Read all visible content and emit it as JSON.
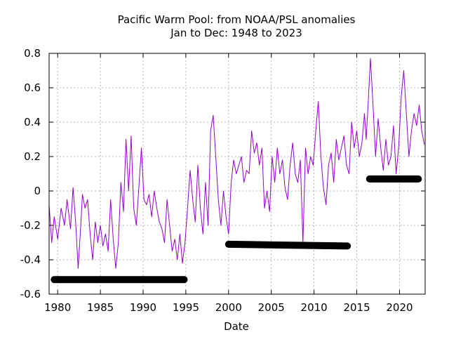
{
  "chart_data": {
    "type": "line",
    "title_lines": [
      "Pacific Warm Pool: from NOAA/PSL  anomalies",
      "Jan to Dec: 1948 to 2023"
    ],
    "xlabel": "Date",
    "ylabel": "",
    "xlim": [
      1979,
      2023
    ],
    "ylim": [
      -0.6,
      0.8
    ],
    "x_ticks": [
      1980,
      1985,
      1990,
      1995,
      2000,
      2005,
      2010,
      2015,
      2020
    ],
    "y_ticks": [
      -0.6,
      -0.4,
      -0.2,
      0,
      0.2,
      0.4,
      0.6,
      0.8
    ],
    "y_tick_labels": [
      "-0.6",
      "-0.4",
      "-0.2",
      "0",
      "0.2",
      "0.4",
      "0.6",
      "0.8"
    ],
    "grid": true,
    "colors": {
      "anomaly_line": "#9400d3",
      "segment_means": "#000000"
    },
    "series": [
      {
        "color": "#9400d3",
        "x": [
          1979.0,
          1979.3,
          1979.6,
          1980.0,
          1980.4,
          1980.8,
          1981.1,
          1981.5,
          1981.8,
          1982.1,
          1982.4,
          1982.7,
          1982.9,
          1983.2,
          1983.5,
          1983.8,
          1984.1,
          1984.4,
          1984.7,
          1985.0,
          1985.3,
          1985.6,
          1985.9,
          1986.2,
          1986.5,
          1986.8,
          1987.1,
          1987.4,
          1987.7,
          1988.0,
          1988.3,
          1988.6,
          1988.9,
          1989.2,
          1989.5,
          1989.8,
          1990.1,
          1990.4,
          1990.7,
          1991.0,
          1991.3,
          1991.6,
          1991.9,
          1992.2,
          1992.5,
          1992.8,
          1993.1,
          1993.4,
          1993.7,
          1994.0,
          1994.3,
          1994.6,
          1994.9,
          1995.2,
          1995.5,
          1995.8,
          1996.1,
          1996.4,
          1996.7,
          1997.0,
          1997.3,
          1997.6,
          1997.9,
          1998.2,
          1998.5,
          1998.8,
          1999.1,
          1999.4,
          1999.7,
          2000.0,
          2000.3,
          2000.6,
          2000.9,
          2001.2,
          2001.5,
          2001.8,
          2002.1,
          2002.4,
          2002.7,
          2003.0,
          2003.3,
          2003.6,
          2003.9,
          2004.2,
          2004.5,
          2004.8,
          2005.1,
          2005.4,
          2005.7,
          2006.0,
          2006.3,
          2006.6,
          2006.9,
          2007.2,
          2007.5,
          2007.8,
          2008.1,
          2008.4,
          2008.7,
          2009.0,
          2009.3,
          2009.6,
          2009.9,
          2010.2,
          2010.5,
          2010.8,
          2011.1,
          2011.4,
          2011.7,
          2012.0,
          2012.3,
          2012.6,
          2012.9,
          2013.2,
          2013.5,
          2013.8,
          2014.1,
          2014.4,
          2014.7,
          2015.0,
          2015.3,
          2015.6,
          2015.9,
          2016.1,
          2016.3,
          2016.6,
          2016.9,
          2017.2,
          2017.5,
          2017.8,
          2018.1,
          2018.4,
          2018.7,
          2019.0,
          2019.3,
          2019.6,
          2019.9,
          2020.2,
          2020.5,
          2020.8,
          2021.1,
          2021.4,
          2021.7,
          2022.0,
          2022.3,
          2022.6,
          2022.9
        ],
        "y": [
          -0.08,
          -0.3,
          -0.15,
          -0.28,
          -0.1,
          -0.2,
          -0.05,
          -0.22,
          0.02,
          -0.18,
          -0.45,
          -0.2,
          -0.02,
          -0.1,
          -0.05,
          -0.25,
          -0.4,
          -0.18,
          -0.3,
          -0.2,
          -0.32,
          -0.25,
          -0.35,
          -0.05,
          -0.28,
          -0.45,
          -0.3,
          0.05,
          -0.12,
          0.3,
          0.0,
          0.32,
          -0.1,
          -0.2,
          0.02,
          0.25,
          -0.05,
          -0.08,
          -0.02,
          -0.15,
          0.0,
          -0.1,
          -0.18,
          -0.22,
          -0.3,
          -0.05,
          -0.2,
          -0.35,
          -0.28,
          -0.4,
          -0.25,
          -0.42,
          -0.3,
          -0.1,
          0.12,
          -0.05,
          -0.18,
          0.15,
          -0.1,
          -0.25,
          0.05,
          -0.2,
          0.35,
          0.44,
          0.2,
          -0.05,
          -0.2,
          0.0,
          -0.15,
          -0.25,
          0.05,
          0.18,
          0.1,
          0.15,
          0.2,
          0.05,
          0.12,
          0.1,
          0.35,
          0.22,
          0.28,
          0.15,
          0.25,
          -0.1,
          0.0,
          -0.12,
          0.2,
          0.05,
          0.25,
          0.1,
          0.18,
          0.02,
          -0.05,
          0.15,
          0.28,
          0.1,
          0.05,
          0.18,
          -0.3,
          0.25,
          0.1,
          0.2,
          0.15,
          0.35,
          0.52,
          0.2,
          0.02,
          -0.08,
          0.15,
          0.22,
          0.05,
          0.3,
          0.18,
          0.25,
          0.32,
          0.15,
          0.1,
          0.4,
          0.25,
          0.35,
          0.2,
          0.28,
          0.45,
          0.3,
          0.48,
          0.77,
          0.5,
          0.2,
          0.42,
          0.25,
          0.12,
          0.3,
          0.15,
          0.2,
          0.38,
          0.1,
          0.25,
          0.55,
          0.7,
          0.45,
          0.2,
          0.35,
          0.45,
          0.38,
          0.5,
          0.35,
          0.27
        ]
      },
      {
        "color": "#000000",
        "segment": true,
        "x": [
          1979.6,
          1994.8
        ],
        "y": [
          -0.515,
          -0.515
        ]
      },
      {
        "color": "#000000",
        "segment": true,
        "x": [
          2000.0,
          2013.9
        ],
        "y": [
          -0.31,
          -0.32
        ]
      },
      {
        "color": "#000000",
        "segment": true,
        "x": [
          2016.5,
          2022.2
        ],
        "y": [
          0.07,
          0.07
        ]
      }
    ]
  }
}
